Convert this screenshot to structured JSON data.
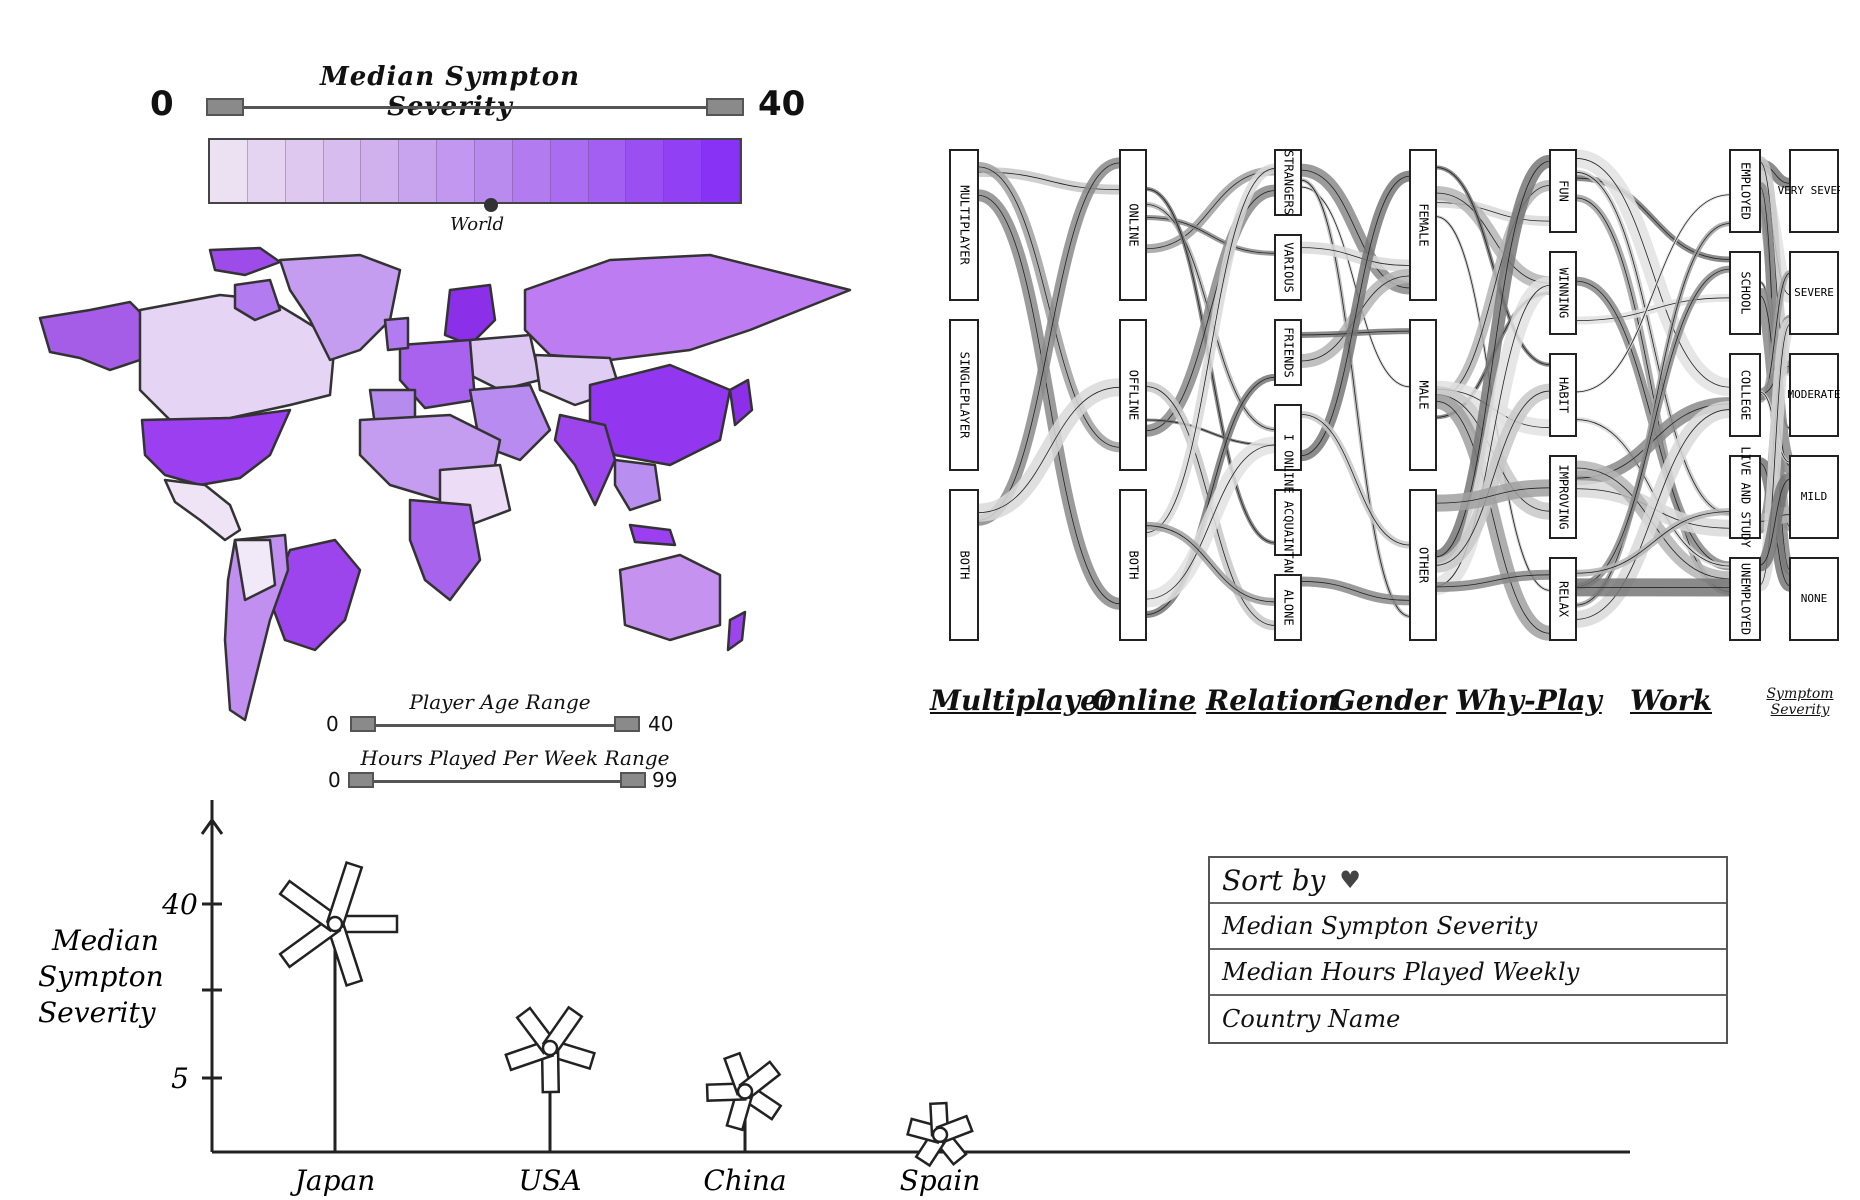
{
  "severity_legend": {
    "title": "Median Sympton Severity",
    "min": "0",
    "max": "40",
    "marker_label": "World",
    "marker_value": 21,
    "ramp_colors": [
      "#ece0f3",
      "#e5d4f1",
      "#dec8ef",
      "#d7bdef",
      "#d0b1ee",
      "#c8a4ee",
      "#c197ef",
      "#ba8bef",
      "#b27cf0",
      "#aa6df1",
      "#a25ff2",
      "#9a4ff3",
      "#9140f4",
      "#8732f5"
    ]
  },
  "sliders": {
    "age": {
      "label": "Player Age Range",
      "min": "0",
      "max": "40"
    },
    "hours": {
      "label": "Hours Played Per Week Range",
      "min": "0",
      "max": "99"
    }
  },
  "sankey": {
    "axes": [
      "Multiplayer",
      "Online",
      "Relation",
      "Gender",
      "Why-Play",
      "Work",
      "Symptom Severity"
    ],
    "columns": [
      {
        "name": "multiplayer",
        "nodes": [
          "MULTIPLAYER",
          "SINGLEPLAYER",
          "BOTH"
        ]
      },
      {
        "name": "online",
        "nodes": [
          "ONLINE",
          "OFFLINE",
          "BOTH"
        ]
      },
      {
        "name": "relation",
        "nodes": [
          "STRANGERS",
          "VARIOUS",
          "FRIENDS",
          "I",
          "ONLINE ACQUAINTANCES",
          "ALONE"
        ]
      },
      {
        "name": "gender",
        "nodes": [
          "FEMALE",
          "MALE",
          "OTHER"
        ]
      },
      {
        "name": "why_play",
        "nodes": [
          "FUN",
          "WINNING",
          "HABIT",
          "IMPROVING",
          "RELAX"
        ]
      },
      {
        "name": "work",
        "nodes": [
          "EMPLOYED",
          "SCHOOL",
          "COLLEGE",
          "LIVE AND STUDY",
          "UNEMPLOYED"
        ]
      },
      {
        "name": "severity",
        "nodes": [
          "VERY SEVERE",
          "SEVERE",
          "MODERATE",
          "MILD",
          "NONE"
        ]
      }
    ]
  },
  "chart_data": {
    "type": "scatter",
    "title": "",
    "xlabel": "",
    "ylabel": "Median Sympton Severity",
    "yticks": [
      "40",
      "5"
    ],
    "categories": [
      "Japan",
      "USA",
      "China",
      "Spain"
    ],
    "values": [
      40,
      20,
      13,
      6
    ],
    "glyph": "pinwheel"
  },
  "sort_panel": {
    "header": "Sort by",
    "options": [
      "Median Sympton Severity",
      "Median Hours Played Weekly",
      "Country Name"
    ]
  }
}
